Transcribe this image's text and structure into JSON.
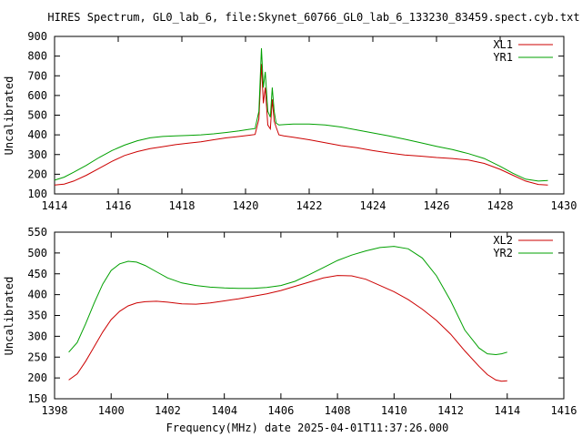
{
  "figure": {
    "title": "HIRES Spectrum, GL0_lab_6, file:Skynet_60766_GL0_lab_6_133230_83459.spect.cyb.txt",
    "xlabel": "Frequency(MHz) date 2025-04-01T11:37:26.000"
  },
  "chart_data": [
    {
      "type": "line",
      "title": "HIRES Spectrum, GL0_lab_6, file:Skynet_60766_GL0_lab_6_133230_83459.spect.cyb.txt",
      "xlabel": "",
      "ylabel": "Uncalibrated",
      "xlim": [
        1414,
        1430
      ],
      "ylim": [
        100,
        900
      ],
      "xticks": [
        "1414",
        "1416",
        "1418",
        "1420",
        "1422",
        "1424",
        "1426",
        "1428",
        "1430"
      ],
      "yticks": [
        "100",
        "200",
        "300",
        "400",
        "500",
        "600",
        "700",
        "800",
        "900"
      ],
      "legend_position": "top-right",
      "grid": false,
      "series": [
        {
          "name": "XL1",
          "color": "#cc0000",
          "x": [
            1414.0,
            1414.3,
            1414.6,
            1415.0,
            1415.4,
            1415.8,
            1416.2,
            1416.6,
            1417.0,
            1417.4,
            1417.8,
            1418.2,
            1418.6,
            1419.0,
            1419.4,
            1419.8,
            1420.1,
            1420.3,
            1420.42,
            1420.5,
            1420.56,
            1420.62,
            1420.7,
            1420.78,
            1420.84,
            1420.9,
            1420.96,
            1421.05,
            1421.2,
            1421.5,
            1422.0,
            1422.5,
            1423.0,
            1423.5,
            1424.0,
            1424.5,
            1425.0,
            1425.5,
            1426.0,
            1426.5,
            1427.0,
            1427.5,
            1428.0,
            1428.4,
            1428.8,
            1429.2,
            1429.5
          ],
          "y": [
            145,
            150,
            165,
            195,
            230,
            265,
            295,
            315,
            330,
            340,
            350,
            358,
            365,
            375,
            385,
            392,
            398,
            402,
            480,
            760,
            560,
            640,
            450,
            430,
            580,
            470,
            440,
            400,
            395,
            388,
            375,
            360,
            345,
            335,
            320,
            308,
            298,
            292,
            285,
            280,
            272,
            255,
            225,
            195,
            165,
            148,
            145
          ]
        },
        {
          "name": "YR1",
          "color": "#00a000",
          "x": [
            1414.0,
            1414.3,
            1414.6,
            1415.0,
            1415.4,
            1415.8,
            1416.2,
            1416.6,
            1417.0,
            1417.4,
            1417.8,
            1418.2,
            1418.6,
            1419.0,
            1419.4,
            1419.8,
            1420.1,
            1420.3,
            1420.42,
            1420.5,
            1420.56,
            1420.62,
            1420.7,
            1420.78,
            1420.84,
            1420.9,
            1420.96,
            1421.05,
            1421.2,
            1421.5,
            1422.0,
            1422.5,
            1423.0,
            1423.5,
            1424.0,
            1424.5,
            1425.0,
            1425.5,
            1426.0,
            1426.5,
            1427.0,
            1427.5,
            1428.0,
            1428.4,
            1428.8,
            1429.2,
            1429.5
          ],
          "y": [
            170,
            185,
            210,
            245,
            285,
            320,
            348,
            370,
            385,
            392,
            395,
            397,
            400,
            405,
            412,
            420,
            428,
            432,
            520,
            840,
            640,
            720,
            520,
            490,
            640,
            520,
            460,
            450,
            452,
            455,
            455,
            450,
            440,
            425,
            410,
            395,
            378,
            360,
            342,
            325,
            305,
            280,
            240,
            205,
            175,
            165,
            168
          ]
        }
      ]
    },
    {
      "type": "line",
      "title": "",
      "xlabel": "Frequency(MHz) date 2025-04-01T11:37:26.000",
      "ylabel": "Uncalibrated",
      "xlim": [
        1398,
        1416
      ],
      "ylim": [
        150,
        550
      ],
      "xticks": [
        "1398",
        "1400",
        "1402",
        "1404",
        "1406",
        "1408",
        "1410",
        "1412",
        "1414",
        "1416"
      ],
      "yticks": [
        "150",
        "200",
        "250",
        "300",
        "350",
        "400",
        "450",
        "500",
        "550"
      ],
      "legend_position": "top-right",
      "grid": false,
      "series": [
        {
          "name": "XL2",
          "color": "#cc0000",
          "x": [
            1398.5,
            1398.8,
            1399.1,
            1399.4,
            1399.7,
            1400.0,
            1400.3,
            1400.6,
            1400.9,
            1401.2,
            1401.6,
            1402.0,
            1402.5,
            1403.0,
            1403.5,
            1404.0,
            1404.5,
            1405.0,
            1405.5,
            1406.0,
            1406.5,
            1407.0,
            1407.5,
            1408.0,
            1408.5,
            1409.0,
            1409.5,
            1410.0,
            1410.5,
            1411.0,
            1411.5,
            1412.0,
            1412.5,
            1413.0,
            1413.3,
            1413.6,
            1413.8,
            1414.0
          ],
          "y": [
            195,
            210,
            240,
            275,
            310,
            340,
            360,
            373,
            380,
            383,
            384,
            382,
            378,
            377,
            380,
            385,
            390,
            396,
            402,
            410,
            420,
            430,
            440,
            446,
            445,
            437,
            422,
            407,
            388,
            365,
            338,
            305,
            265,
            228,
            208,
            195,
            192,
            193
          ]
        },
        {
          "name": "YR2",
          "color": "#00a000",
          "x": [
            1398.5,
            1398.8,
            1399.1,
            1399.4,
            1399.7,
            1400.0,
            1400.3,
            1400.6,
            1400.9,
            1401.2,
            1401.6,
            1402.0,
            1402.5,
            1403.0,
            1403.5,
            1404.0,
            1404.5,
            1405.0,
            1405.5,
            1406.0,
            1406.5,
            1407.0,
            1407.5,
            1408.0,
            1408.5,
            1409.0,
            1409.5,
            1410.0,
            1410.5,
            1411.0,
            1411.5,
            1412.0,
            1412.5,
            1413.0,
            1413.3,
            1413.6,
            1413.8,
            1414.0
          ],
          "y": [
            262,
            285,
            330,
            380,
            425,
            458,
            474,
            480,
            478,
            470,
            455,
            440,
            428,
            422,
            418,
            416,
            415,
            415,
            417,
            422,
            432,
            448,
            465,
            482,
            495,
            505,
            513,
            516,
            510,
            488,
            445,
            385,
            315,
            272,
            258,
            256,
            258,
            262
          ]
        }
      ]
    }
  ]
}
